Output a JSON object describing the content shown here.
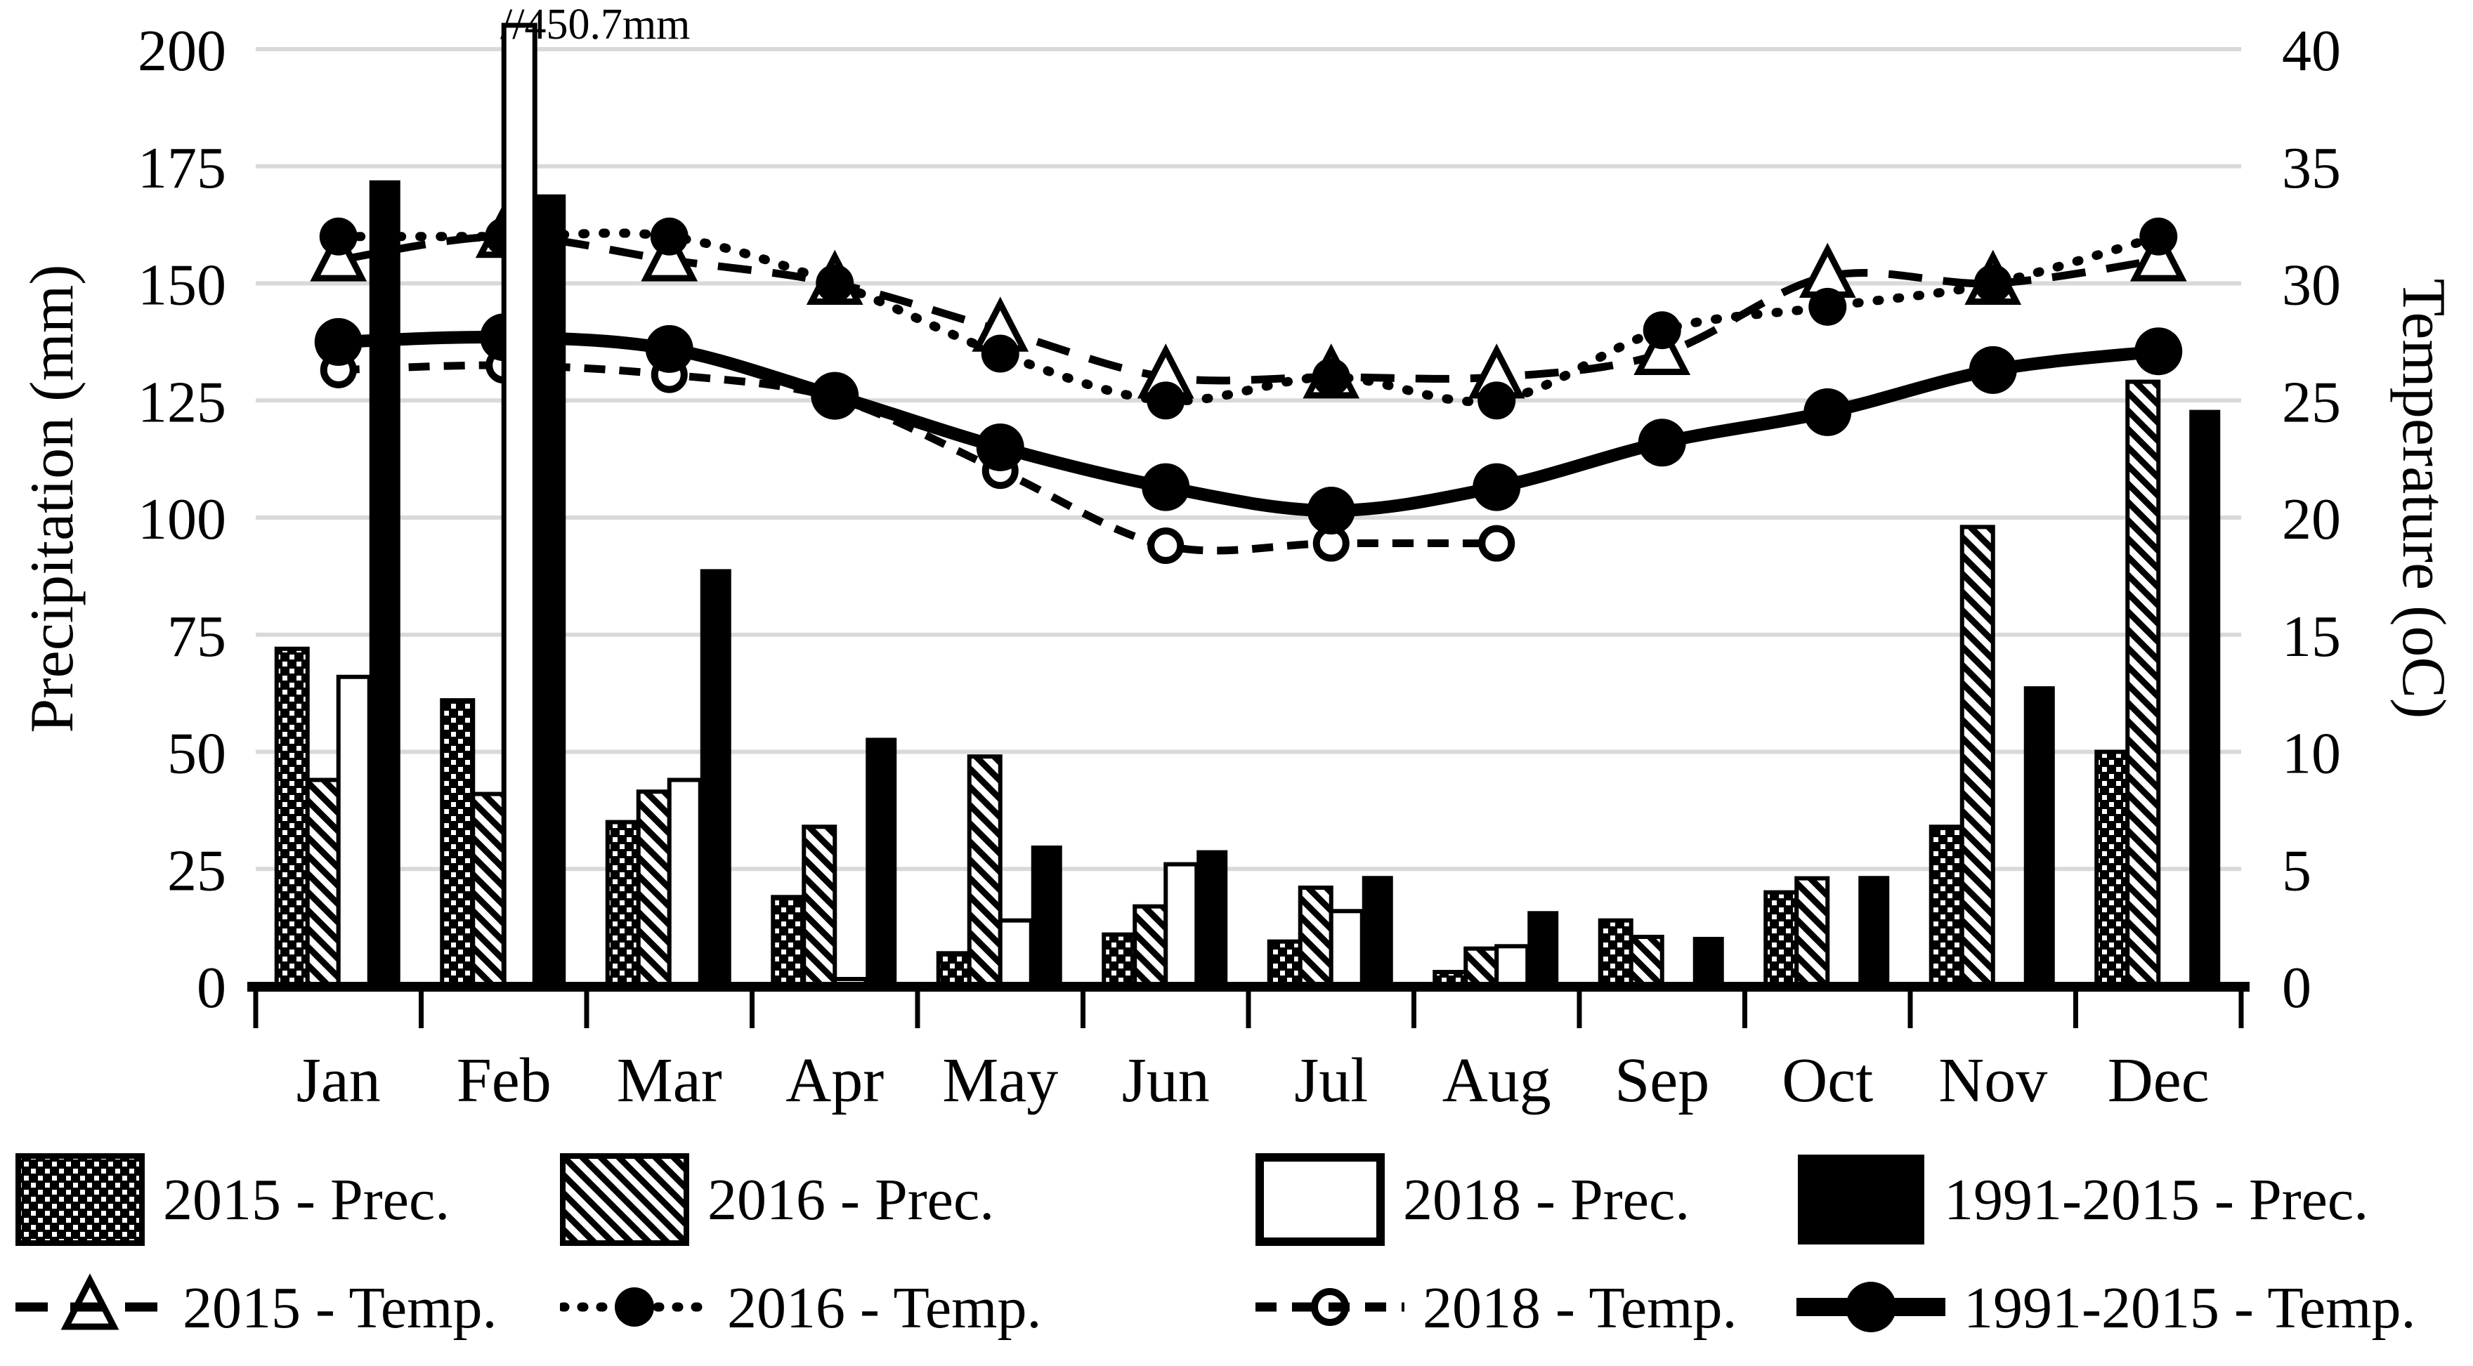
{
  "annotation": "//450.7mm",
  "chart_data": {
    "type": "bar+line",
    "categories": [
      "Jan",
      "Feb",
      "Mar",
      "Apr",
      "May",
      "Jun",
      "Jul",
      "Aug",
      "Sep",
      "Oct",
      "Nov",
      "Dec"
    ],
    "left_axis": {
      "label": "Precipitation (mm)",
      "min": 0,
      "max": 200,
      "step": 25,
      "ticks": [
        0,
        25,
        50,
        75,
        100,
        125,
        150,
        175,
        200
      ]
    },
    "right_axis": {
      "label": "Temperature (oC)",
      "min": 0,
      "max": 40,
      "step": 5,
      "ticks": [
        0,
        5,
        10,
        15,
        20,
        25,
        30,
        35,
        40
      ]
    },
    "grid": "horizontal-light-gray",
    "legend_position": "bottom-two-rows",
    "annotation": "//450.7mm",
    "annotation_meaning": "Feb 2018 precipitation bar is off-scale at 450.7 mm and is drawn clipped at the top of the plot",
    "bar_series": [
      {
        "name": "2015 - Prec.",
        "pattern": "black-with-white-dots",
        "values": [
          72,
          61,
          35,
          19,
          7,
          11,
          9.5,
          3,
          14,
          20,
          34,
          50
        ]
      },
      {
        "name": "2016 - Prec.",
        "pattern": "white-with-black-diagonal-hatch",
        "values": [
          44,
          41,
          41.5,
          34,
          49,
          17,
          21,
          8,
          10.5,
          23,
          98,
          129
        ]
      },
      {
        "name": "2018 - Prec.",
        "pattern": "white-black-outline",
        "values": [
          66,
          450.7,
          44,
          1.5,
          14,
          26,
          16,
          8.5,
          null,
          null,
          null,
          null
        ]
      },
      {
        "name": "1991-2015 - Prec.",
        "pattern": "solid-black",
        "values": [
          172,
          169,
          89,
          53,
          30,
          29,
          23.5,
          16,
          10.5,
          23.5,
          64,
          123
        ]
      }
    ],
    "line_series": [
      {
        "name": "2015 - Temp.",
        "style": "dashed",
        "marker": "open-triangle",
        "values": [
          31,
          32,
          31,
          30,
          28,
          26,
          26,
          26,
          27,
          30.3,
          30,
          31
        ]
      },
      {
        "name": "2016 - Temp.",
        "style": "dotted",
        "marker": "filled-circle",
        "values": [
          32,
          32,
          32,
          30,
          27,
          25,
          26,
          25,
          28,
          29,
          30,
          32
        ]
      },
      {
        "name": "2018 - Temp.",
        "style": "short-dash",
        "marker": "open-circle",
        "values": [
          26.3,
          26.5,
          26.1,
          25.1,
          22,
          18.8,
          18.9,
          18.9,
          null,
          null,
          null,
          null
        ]
      },
      {
        "name": "1991-2015 - Temp.",
        "style": "solid-thick",
        "marker": "large-filled-circle",
        "values": [
          27.5,
          27.7,
          27.2,
          25.2,
          23,
          21.3,
          20.3,
          21.3,
          23.2,
          24.5,
          26.3,
          27.1
        ]
      }
    ],
    "colors": {
      "ink": "#000000",
      "gridline": "#d9d9d9",
      "background": "#ffffff"
    }
  }
}
